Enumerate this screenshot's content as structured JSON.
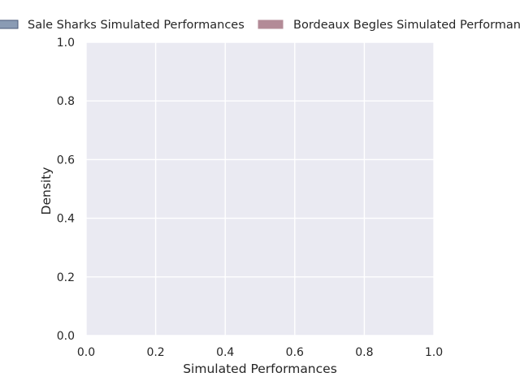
{
  "chart_data": {
    "type": "area",
    "xlabel": "Simulated Performances",
    "ylabel": "Density",
    "xlim": [
      0,
      1
    ],
    "ylim": [
      0,
      1
    ],
    "x_ticks": [
      "0.0",
      "0.2",
      "0.4",
      "0.6",
      "0.8",
      "1.0"
    ],
    "y_ticks": [
      "0.0",
      "0.2",
      "0.4",
      "0.6",
      "0.8",
      "1.0"
    ],
    "grid": true,
    "legend_position": "top, above plot",
    "series": [
      {
        "name": "Sale Sharks Simulated Performances",
        "color": "#8a9bb4",
        "values": []
      },
      {
        "name": "Bordeaux Begles Simulated Performances",
        "color": "#b38b97",
        "values": []
      }
    ],
    "style": {
      "plot_background": "#eaeaf2",
      "grid_color": "#ffffff"
    }
  }
}
